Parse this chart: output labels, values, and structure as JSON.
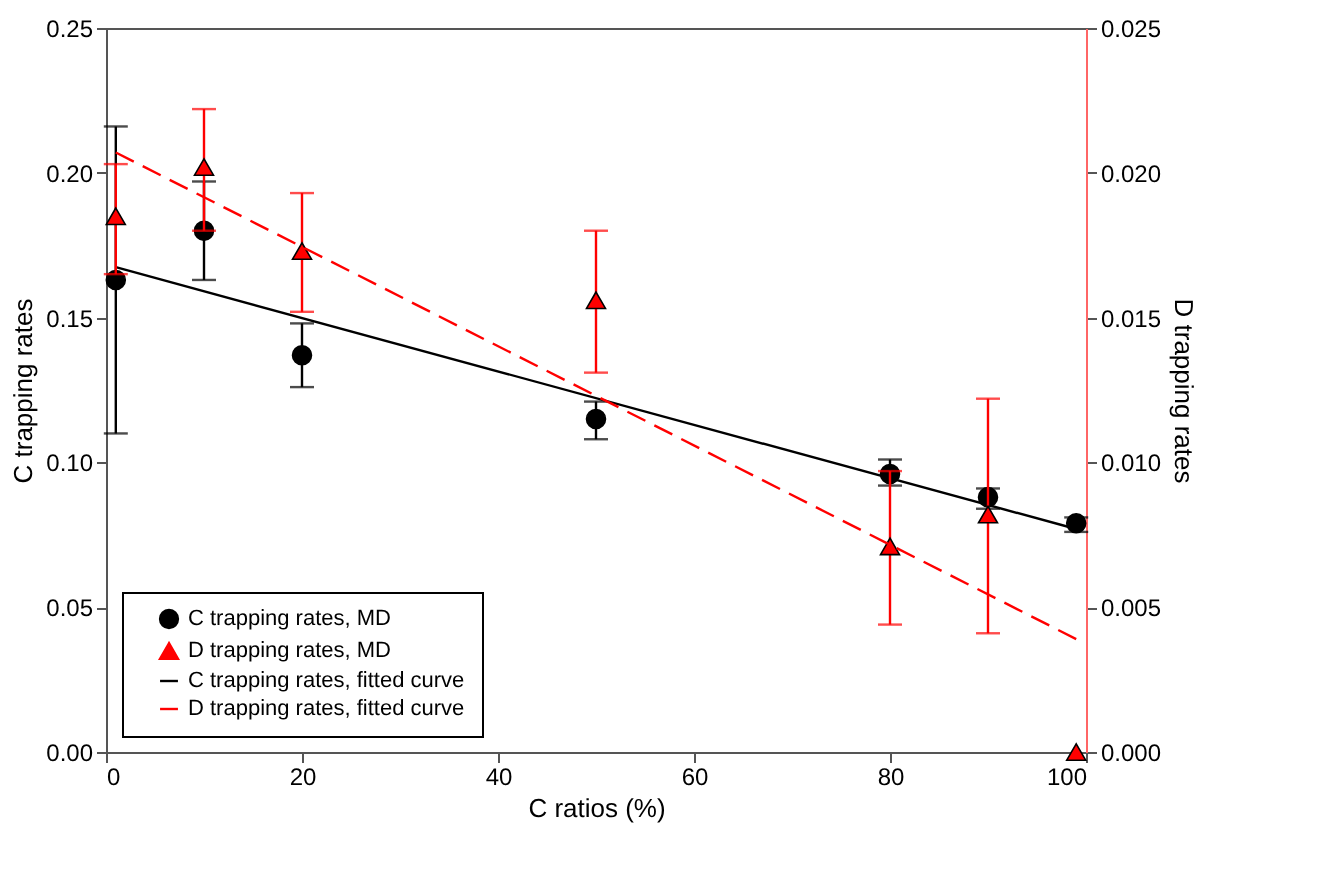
{
  "chart_data": {
    "type": "scatter",
    "xlabel": "C ratios (%)",
    "ylabel": "C trapping rates",
    "y2label": "D trapping rates",
    "xlim": [
      0,
      100
    ],
    "xticks": [
      0,
      20,
      40,
      60,
      80,
      100
    ],
    "ylim": [
      0,
      0.25
    ],
    "yticks": [
      {
        "value": 0,
        "label": "0.00"
      },
      {
        "value": 0.05,
        "label": "0.05"
      },
      {
        "value": 0.1,
        "label": "0.10"
      },
      {
        "value": 0.15,
        "label": "0.15"
      },
      {
        "value": 0.2,
        "label": "0.20"
      },
      {
        "value": 0.25,
        "label": "0.25"
      }
    ],
    "y2lim": [
      0,
      0.025
    ],
    "y2ticks": [
      {
        "value": 0,
        "label": "0.000"
      },
      {
        "value": 0.005,
        "label": "0.005"
      },
      {
        "value": 0.01,
        "label": "0.010"
      },
      {
        "value": 0.015,
        "label": "0.015"
      },
      {
        "value": 0.02,
        "label": "0.020"
      },
      {
        "value": 0.025,
        "label": "0.025"
      }
    ],
    "grid": false,
    "legend": "bottom left",
    "series": [
      {
        "name": "C trapping rates, MD",
        "marker": "circle",
        "color": "#000000",
        "x": [
          1,
          10,
          20,
          50,
          80,
          90,
          99
        ],
        "values": [
          0.163,
          0.18,
          0.137,
          0.115,
          0.096,
          0.088,
          0.079
        ],
        "errors": [
          [
            0.11,
            0.216
          ],
          [
            0.163,
            0.197
          ],
          [
            0.126,
            0.148
          ],
          [
            0.108,
            0.121
          ],
          [
            0.092,
            0.101
          ],
          [
            0.084,
            0.091
          ],
          [
            0.076,
            0.081
          ]
        ]
      },
      {
        "name": "D trapping rates, MD",
        "marker": "triangle",
        "axis": "y2",
        "color": "#ff0000",
        "x": [
          1,
          10,
          20,
          50,
          80,
          90,
          99
        ],
        "values": [
          0.0185,
          0.0202,
          0.0173,
          0.0156,
          0.0071,
          0.0082,
          0.0
        ],
        "errors": [
          [
            0.0165,
            0.0203
          ],
          [
            0.018,
            0.0222
          ],
          [
            0.0152,
            0.0193
          ],
          [
            0.0131,
            0.018
          ],
          [
            0.0044,
            0.0097
          ],
          [
            0.0041,
            0.0122
          ],
          null
        ]
      },
      {
        "name": "C trapping rates, fitted curve",
        "type": "line",
        "line_style": "solid",
        "color": "#000000",
        "x": [
          1,
          99
        ],
        "values": [
          0.1674,
          0.077
        ]
      },
      {
        "name": "D trapping rates, fitted curve",
        "type": "line",
        "line_style": "dashed",
        "axis": "y2",
        "color": "#ff0000",
        "x": [
          1,
          99
        ],
        "values": [
          0.0207,
          0.0039
        ]
      }
    ]
  }
}
